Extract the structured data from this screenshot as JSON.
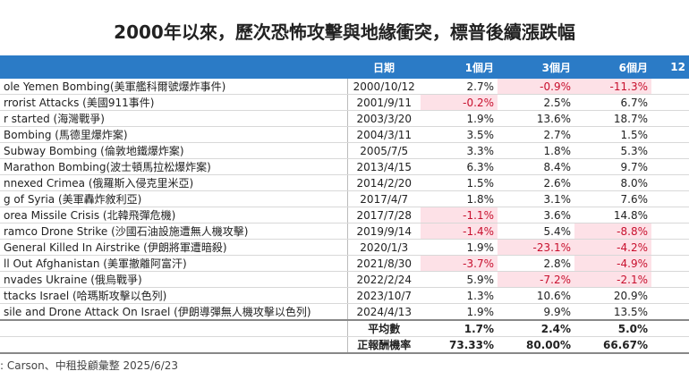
{
  "header": {
    "title": "2000年以來，歷次恐怖攻擊與地緣衝突，標普後續漲跌幅"
  },
  "table": {
    "columns": [
      "日期",
      "1個月",
      "3個月",
      "6個月",
      "12"
    ],
    "rows": [
      [
        "ole Yemen Bombing(美軍艦科爾號爆炸事件)",
        "2000/10/12",
        "2.7%",
        "-0.9%",
        "-11.3%"
      ],
      [
        "rrorist Attacks (美國911事件)",
        "2001/9/11",
        "-0.2%",
        "2.5%",
        "6.7%"
      ],
      [
        "r started  (海灣戰爭)",
        "2003/3/20",
        "1.9%",
        "13.6%",
        "18.7%"
      ],
      [
        "Bombing (馬德里爆炸案)",
        "2004/3/11",
        "3.5%",
        "2.7%",
        "1.5%"
      ],
      [
        " Subway Bombing (倫敦地鐵爆炸案)",
        "2005/7/5",
        "3.3%",
        "1.8%",
        "5.3%"
      ],
      [
        "Marathon Bombing(波士頓馬拉松爆炸案)",
        "2013/4/15",
        "6.3%",
        "8.4%",
        "9.7%"
      ],
      [
        "nnexed Crimea (俄羅斯入侵克里米亞)",
        "2014/2/20",
        "1.5%",
        "2.6%",
        "8.0%"
      ],
      [
        "g of Syria (美軍轟炸敘利亞)",
        "2017/4/7",
        "1.8%",
        "3.1%",
        "7.6%"
      ],
      [
        "orea Missile Crisis (北韓飛彈危機)",
        "2017/7/28",
        "-1.1%",
        "3.6%",
        "14.8%"
      ],
      [
        "ramco Drone Strike (沙國石油設施遭無人機攻擊)",
        "2019/9/14",
        "-1.4%",
        "5.4%",
        "-8.8%"
      ],
      [
        " General Killed In Airstrike (伊朗將軍遭暗殺)",
        "2020/1/3",
        "1.9%",
        "-23.1%",
        "-4.2%"
      ],
      [
        "ll Out Afghanistan (美軍撤離阿富汗)",
        "2021/8/30",
        "-3.7%",
        "2.8%",
        "-4.9%"
      ],
      [
        "nvades Ukraine (俄烏戰爭)",
        "2022/2/24",
        "5.9%",
        "-7.2%",
        "-2.1%"
      ],
      [
        "ttacks Israel (哈瑪斯攻擊以色列)",
        "2023/10/7",
        "1.3%",
        "10.6%",
        "20.9%"
      ],
      [
        "sile and Drone Attack On Israel (伊朗導彈無人機攻擊以色列)",
        "2024/4/13",
        "1.9%",
        "9.9%",
        "13.5%"
      ]
    ],
    "summary": [
      [
        "平均數",
        "1.7%",
        "2.4%",
        "5.0%"
      ],
      [
        "正報酬機率",
        "73.33%",
        "80.00%",
        "66.67%"
      ]
    ]
  },
  "footer": {
    "source": ": Carson、中租投顧彙整 2025/6/23"
  }
}
